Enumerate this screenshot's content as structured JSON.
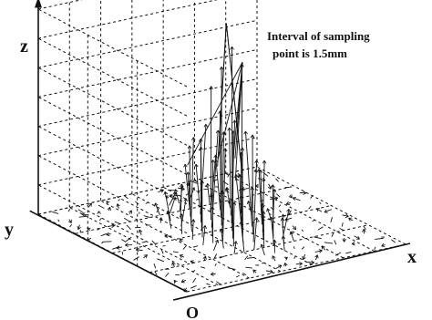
{
  "chart_data": {
    "type": "vector-field-3d",
    "grid": "on",
    "labels": {
      "z_axis": "z",
      "y_axis": "y",
      "x_axis": "x",
      "origin": "O"
    },
    "annotation": [
      "Interval of sampling",
      "point is 1.5mm"
    ],
    "sampling_interval_mm": 1.5,
    "peak_center": {
      "x": 0.52,
      "y": 0.5
    },
    "peak_relative_height": 1.0,
    "colors": {
      "lines": "#111111",
      "background": "#ffffff"
    }
  }
}
